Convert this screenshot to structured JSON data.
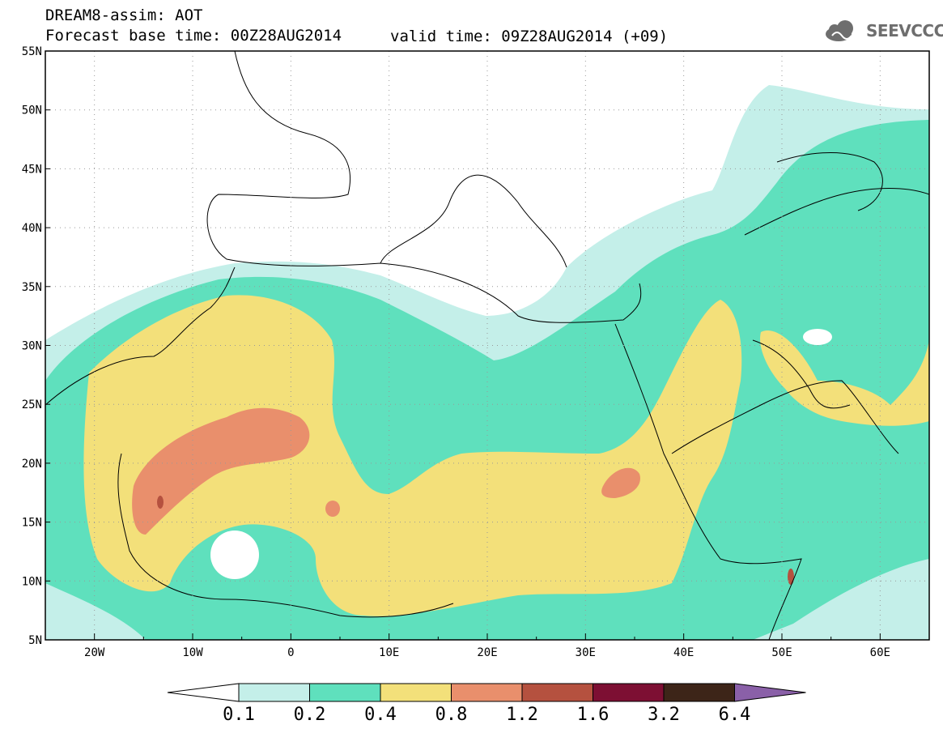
{
  "header": {
    "line1": "DREAM8-assim: AOT",
    "line2_base": "Forecast base time: 00Z28AUG2014",
    "line2_valid": "valid time: 09Z28AUG2014 (+09)",
    "logo_text": "SEEVCCC",
    "logo_icon": "cloud-logo-icon"
  },
  "map": {
    "projection": "lat-lon",
    "lon_range": [
      -25,
      65
    ],
    "lat_range": [
      5,
      55
    ],
    "lat_labels": [
      "55N",
      "50N",
      "45N",
      "40N",
      "35N",
      "30N",
      "25N",
      "20N",
      "15N",
      "10N",
      "5N"
    ],
    "lon_labels": [
      "20W",
      "10W",
      "0",
      "10E",
      "20E",
      "30E",
      "40E",
      "50E",
      "60E"
    ],
    "grid": "dotted"
  },
  "colorbar": {
    "levels": [
      "0.1",
      "0.2",
      "0.4",
      "0.8",
      "1.2",
      "1.6",
      "3.2",
      "6.4"
    ],
    "colors": [
      "#c4efe9",
      "#5fe0bd",
      "#f3e07a",
      "#e98f6c",
      "#b5513f",
      "#7d0f33",
      "#3d2518",
      "#8a60a8"
    ],
    "below_color": "#ffffff"
  }
}
